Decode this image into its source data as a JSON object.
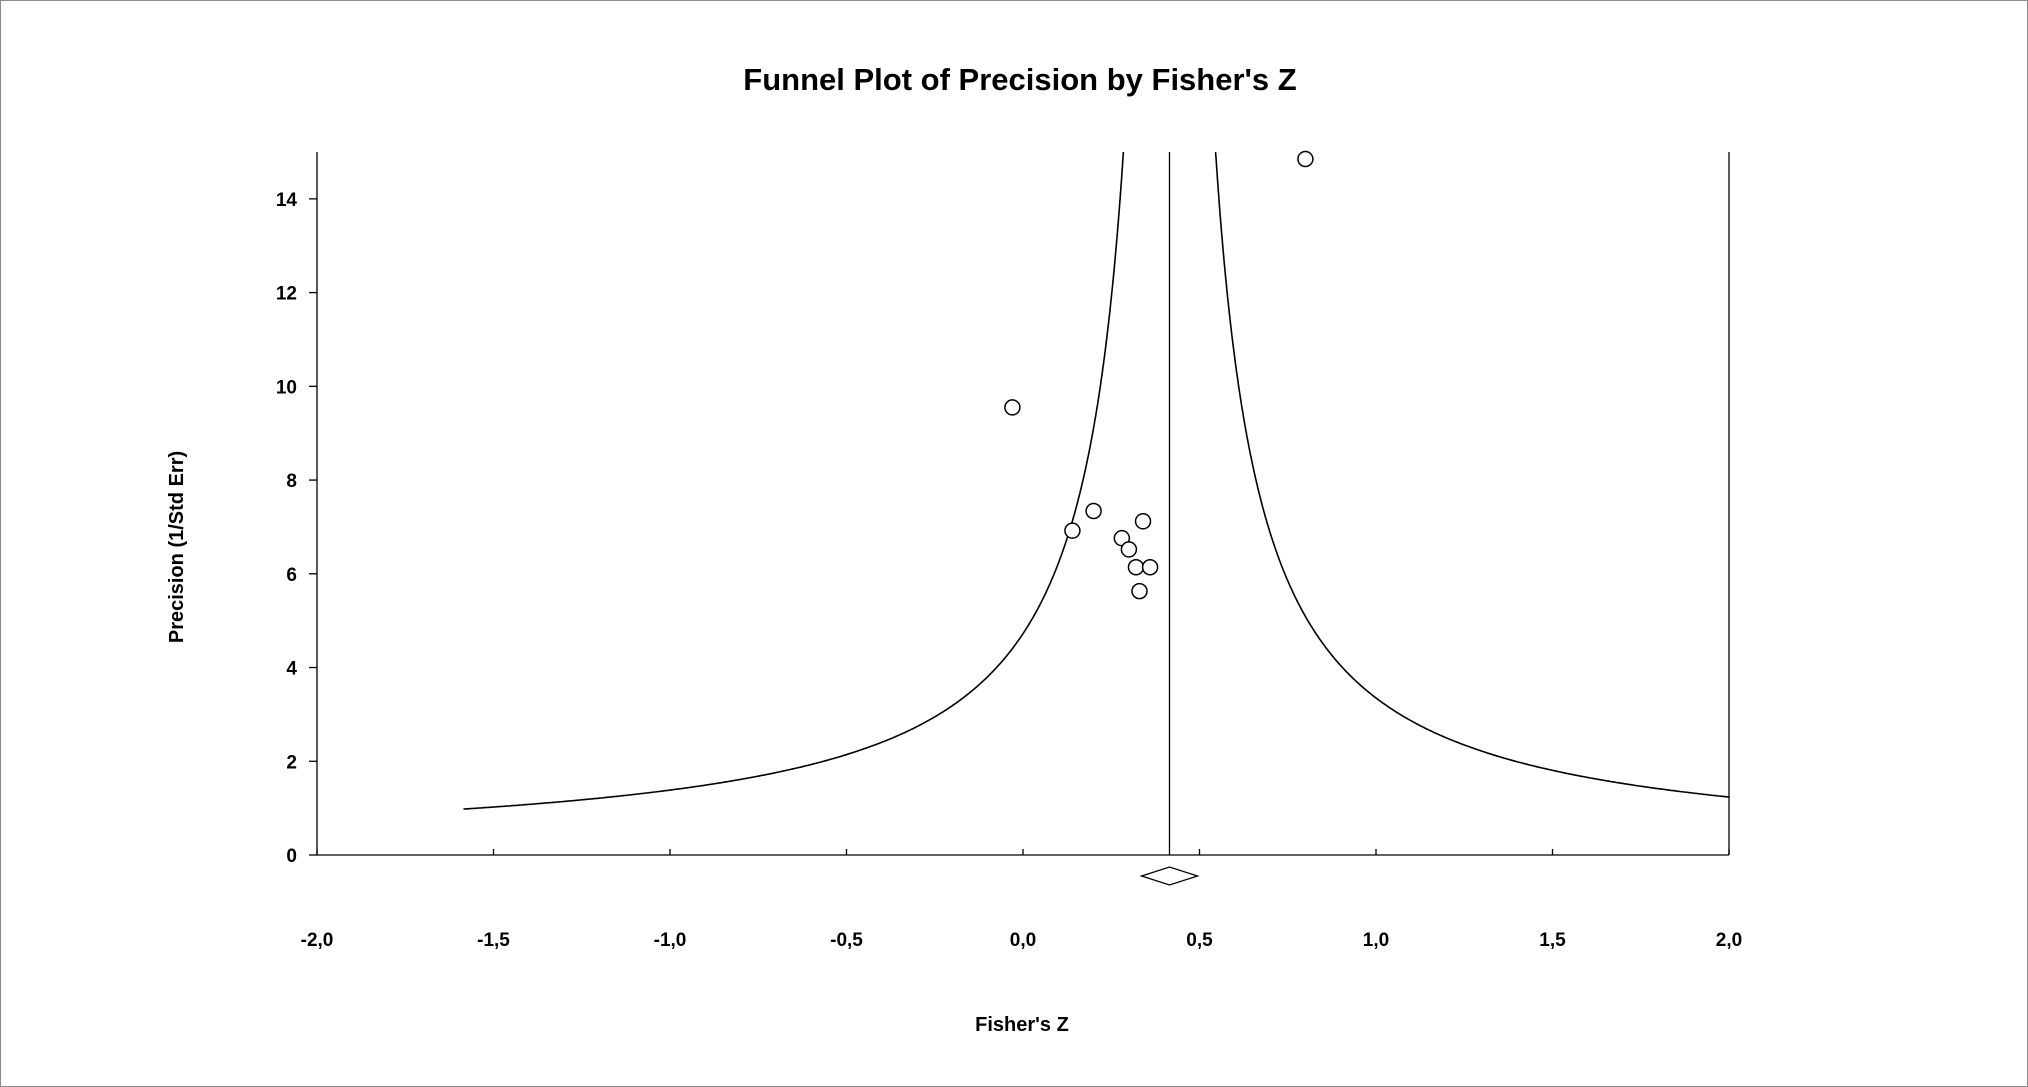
{
  "chart_data": {
    "type": "scatter",
    "title": "Funnel Plot of Precision by Fisher's Z",
    "xlabel": "Fisher's Z",
    "ylabel": "Precision (1/Std Err)",
    "xlim": [
      -2.0,
      2.0
    ],
    "ylim": [
      0,
      15
    ],
    "x_ticks": [
      -2.0,
      -1.5,
      -1.0,
      -0.5,
      0.0,
      0.5,
      1.0,
      1.5,
      2.0
    ],
    "x_tick_labels": [
      "-2,0",
      "-1,5",
      "-1,0",
      "-0,5",
      "0,0",
      "0,5",
      "1,0",
      "1,5",
      "2,0"
    ],
    "y_ticks": [
      0,
      2,
      4,
      6,
      8,
      10,
      12,
      14
    ],
    "y_tick_labels": [
      "0",
      "2",
      "4",
      "6",
      "8",
      "10",
      "12",
      "14"
    ],
    "grid": false,
    "summary_effect": 0.415,
    "funnel_z": 1.96,
    "points": [
      {
        "x": -0.03,
        "y": 9.55
      },
      {
        "x": 0.14,
        "y": 6.92
      },
      {
        "x": 0.2,
        "y": 7.34
      },
      {
        "x": 0.28,
        "y": 6.76
      },
      {
        "x": 0.3,
        "y": 6.52
      },
      {
        "x": 0.32,
        "y": 6.14
      },
      {
        "x": 0.33,
        "y": 5.63
      },
      {
        "x": 0.34,
        "y": 7.12
      },
      {
        "x": 0.36,
        "y": 6.14
      },
      {
        "x": 0.8,
        "y": 14.85
      }
    ],
    "colors": {
      "line": "#000000",
      "marker_fill": "#ffffff",
      "marker_stroke": "#000000"
    }
  }
}
